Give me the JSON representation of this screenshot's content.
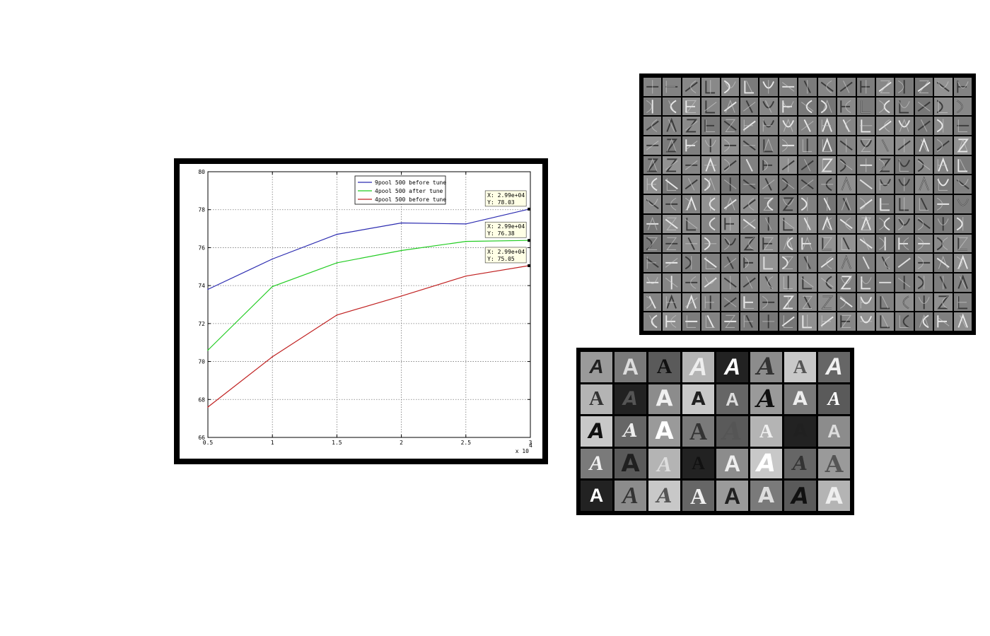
{
  "chart_data": {
    "type": "line",
    "title": "",
    "xlabel": "",
    "ylabel": "",
    "x_exponent_label": "x 10",
    "x_exponent_power": "4",
    "x": [
      0.5,
      1,
      1.5,
      2,
      2.5,
      2.99
    ],
    "xlim": [
      0.5,
      3
    ],
    "ylim": [
      66,
      80
    ],
    "xticks": [
      0.5,
      1,
      1.5,
      2,
      2.5,
      3
    ],
    "xtick_labels": [
      "0.5",
      "1",
      "1.5",
      "2",
      "2.5",
      "3"
    ],
    "yticks": [
      66,
      68,
      70,
      72,
      74,
      76,
      78,
      80
    ],
    "ytick_labels": [
      "66",
      "68",
      "70",
      "72",
      "74",
      "76",
      "78",
      "80"
    ],
    "grid": true,
    "legend_position": "top-right",
    "series": [
      {
        "name": "9pool 500 before tune",
        "color": "#2b2bb0",
        "values": [
          73.8,
          75.4,
          76.7,
          77.3,
          77.25,
          78.03
        ]
      },
      {
        "name": "4pool 500 after tune",
        "color": "#22cc22",
        "values": [
          70.6,
          73.95,
          75.2,
          75.85,
          76.33,
          76.38
        ]
      },
      {
        "name": "4pool 500 before tune",
        "color": "#c02020",
        "values": [
          67.6,
          70.25,
          72.45,
          73.45,
          74.5,
          75.05
        ]
      }
    ],
    "datatips": [
      {
        "series": 0,
        "x_text": "X: 2.99e+04",
        "y_text": "Y: 78.03"
      },
      {
        "series": 1,
        "x_text": "X: 2.99e+04",
        "y_text": "Y: 76.38"
      },
      {
        "series": 2,
        "x_text": "X: 2.99e+04",
        "y_text": "Y: 75.05"
      }
    ]
  },
  "filters_panel": {
    "rows": 13,
    "cols": 17,
    "glyphs": [
      "V",
      "C",
      "J",
      "S",
      "L",
      "U",
      "Z",
      "K",
      "I",
      "E",
      "F",
      "O",
      "/",
      "\\",
      "P",
      "A",
      "N"
    ]
  },
  "samples_panel": {
    "rows": 5,
    "cols": 8,
    "letter": "A",
    "backgrounds": [
      "#9a9a9a",
      "#7a7a7a",
      "#5a5a5a",
      "#b4b4b4",
      "#222222",
      "#8c8c8c",
      "#c8c8c8",
      "#666666"
    ],
    "foregrounds": [
      "#202020",
      "#dddddd",
      "#111111",
      "#eeeeee",
      "#ffffff",
      "#333333",
      "#555555",
      "#f0f0f0"
    ]
  }
}
